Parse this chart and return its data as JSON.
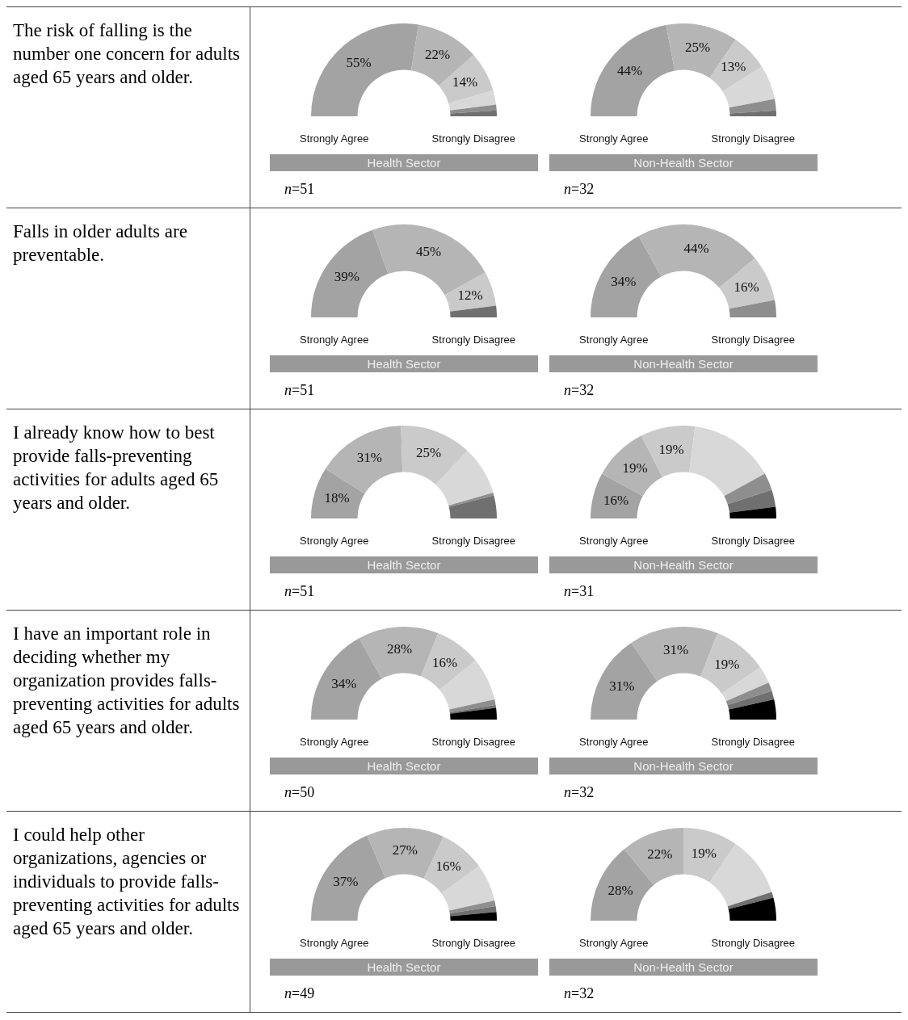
{
  "chart_data": [
    {
      "type": "donut",
      "title": "The risk of falling is the number one concern for adults aged 65 years and older.",
      "xlabel": "Health Sector",
      "categories": [
        null,
        null,
        null,
        null,
        null,
        null
      ],
      "values": [
        55,
        22,
        14,
        5,
        2,
        2
      ],
      "value_labels": [
        "55%",
        "22%",
        "14%",
        null,
        null,
        null
      ],
      "colors": [
        "#a3a3a3",
        "#b5b5b5",
        "#cacaca",
        "#d8d8d8",
        "#8e8e8e",
        "#707070"
      ],
      "annotations": [
        "Strongly Agree",
        "Strongly Disagree",
        "n=51"
      ]
    },
    {
      "type": "donut",
      "xlabel": "Non-Health Sector",
      "categories": [
        null,
        null,
        null,
        null,
        null,
        null
      ],
      "values": [
        44,
        25,
        13,
        12,
        4,
        2
      ],
      "value_labels": [
        "44%",
        "25%",
        "13%",
        null,
        null,
        null
      ],
      "colors": [
        "#a3a3a3",
        "#b5b5b5",
        "#cacaca",
        "#d8d8d8",
        "#8e8e8e",
        "#707070"
      ],
      "annotations": [
        "Strongly Agree",
        "Strongly Disagree",
        "n=32"
      ]
    },
    {
      "type": "donut",
      "title": "Falls in older adults are preventable.",
      "xlabel": "Health Sector",
      "categories": [
        null,
        null,
        null,
        null
      ],
      "values": [
        39,
        45,
        12,
        4
      ],
      "value_labels": [
        "39%",
        "45%",
        "12%",
        null
      ],
      "colors": [
        "#a3a3a3",
        "#b5b5b5",
        "#cacaca",
        "#707070"
      ],
      "annotations": [
        "Strongly Agree",
        "Strongly Disagree",
        "n=51"
      ]
    },
    {
      "type": "donut",
      "xlabel": "Non-Health Sector",
      "categories": [
        null,
        null,
        null,
        null
      ],
      "values": [
        34,
        44,
        16,
        6
      ],
      "value_labels": [
        "34%",
        "44%",
        "16%",
        null
      ],
      "colors": [
        "#a3a3a3",
        "#b5b5b5",
        "#cacaca",
        "#8e8e8e"
      ],
      "annotations": [
        "Strongly Agree",
        "Strongly Disagree",
        "n=32"
      ]
    },
    {
      "type": "donut",
      "title": "I already know how to best provide falls-preventing activities for adults aged 65 years and older.",
      "xlabel": "Health Sector",
      "categories": [
        null,
        null,
        null,
        null,
        null,
        null
      ],
      "values": [
        18,
        31,
        25,
        17,
        1,
        8
      ],
      "value_labels": [
        "18%",
        "31%",
        "25%",
        null,
        null,
        null
      ],
      "colors": [
        "#a3a3a3",
        "#b5b5b5",
        "#cacaca",
        "#d8d8d8",
        "#8e8e8e",
        "#707070"
      ],
      "annotations": [
        "Strongly Agree",
        "Strongly Disagree",
        "n=51"
      ]
    },
    {
      "type": "donut",
      "xlabel": "Non-Health Sector",
      "categories": [
        null,
        null,
        null,
        null,
        null,
        null,
        null
      ],
      "values": [
        16,
        19,
        19,
        30,
        6,
        6,
        4
      ],
      "value_labels": [
        "16%",
        "19%",
        "19%",
        null,
        null,
        null,
        null
      ],
      "colors": [
        "#a3a3a3",
        "#b5b5b5",
        "#cacaca",
        "#d8d8d8",
        "#8e8e8e",
        "#707070",
        "#000000"
      ],
      "annotations": [
        "Strongly Agree",
        "Strongly Disagree",
        "n=31"
      ]
    },
    {
      "type": "donut",
      "title": "I have an important role in deciding whether my organization provides falls-preventing activities for adults aged 65 years and older.",
      "xlabel": "Health Sector",
      "categories": [
        null,
        null,
        null,
        null,
        null,
        null,
        null
      ],
      "values": [
        34,
        28,
        16,
        15,
        2,
        1,
        4
      ],
      "value_labels": [
        "34%",
        "28%",
        "16%",
        null,
        null,
        null,
        null
      ],
      "colors": [
        "#a3a3a3",
        "#b5b5b5",
        "#cacaca",
        "#d8d8d8",
        "#8e8e8e",
        "#707070",
        "#000000"
      ],
      "annotations": [
        "Strongly Agree",
        "Strongly Disagree",
        "n=50"
      ]
    },
    {
      "type": "donut",
      "xlabel": "Non-Health Sector",
      "categories": [
        null,
        null,
        null,
        null,
        null,
        null,
        null
      ],
      "values": [
        31,
        31,
        19,
        6,
        3,
        3,
        7
      ],
      "value_labels": [
        "31%",
        "31%",
        "19%",
        null,
        null,
        null,
        null
      ],
      "colors": [
        "#a3a3a3",
        "#b5b5b5",
        "#cacaca",
        "#d8d8d8",
        "#8e8e8e",
        "#707070",
        "#000000"
      ],
      "annotations": [
        "Strongly Agree",
        "Strongly Disagree",
        "n=32"
      ]
    },
    {
      "type": "donut",
      "title": "I could help other organizations, agencies or individuals to provide falls-preventing activities for adults aged 65 years and older.",
      "xlabel": "Health Sector",
      "categories": [
        null,
        null,
        null,
        null,
        null,
        null,
        null
      ],
      "values": [
        37,
        27,
        16,
        13,
        2,
        2,
        3
      ],
      "value_labels": [
        "37%",
        "27%",
        "16%",
        null,
        null,
        null,
        null
      ],
      "colors": [
        "#a3a3a3",
        "#b5b5b5",
        "#cacaca",
        "#d8d8d8",
        "#8e8e8e",
        "#707070",
        "#000000"
      ],
      "annotations": [
        "Strongly Agree",
        "Strongly Disagree",
        "n=49"
      ]
    },
    {
      "type": "donut",
      "xlabel": "Non-Health Sector",
      "categories": [
        null,
        null,
        null,
        null,
        null,
        null
      ],
      "values": [
        28,
        22,
        19,
        21,
        2,
        8
      ],
      "value_labels": [
        "28%",
        "22%",
        "19%",
        null,
        null,
        null
      ],
      "colors": [
        "#a3a3a3",
        "#b5b5b5",
        "#cacaca",
        "#d8d8d8",
        "#707070",
        "#000000"
      ],
      "annotations": [
        "Strongly Agree",
        "Strongly Disagree",
        "n=32"
      ]
    }
  ]
}
